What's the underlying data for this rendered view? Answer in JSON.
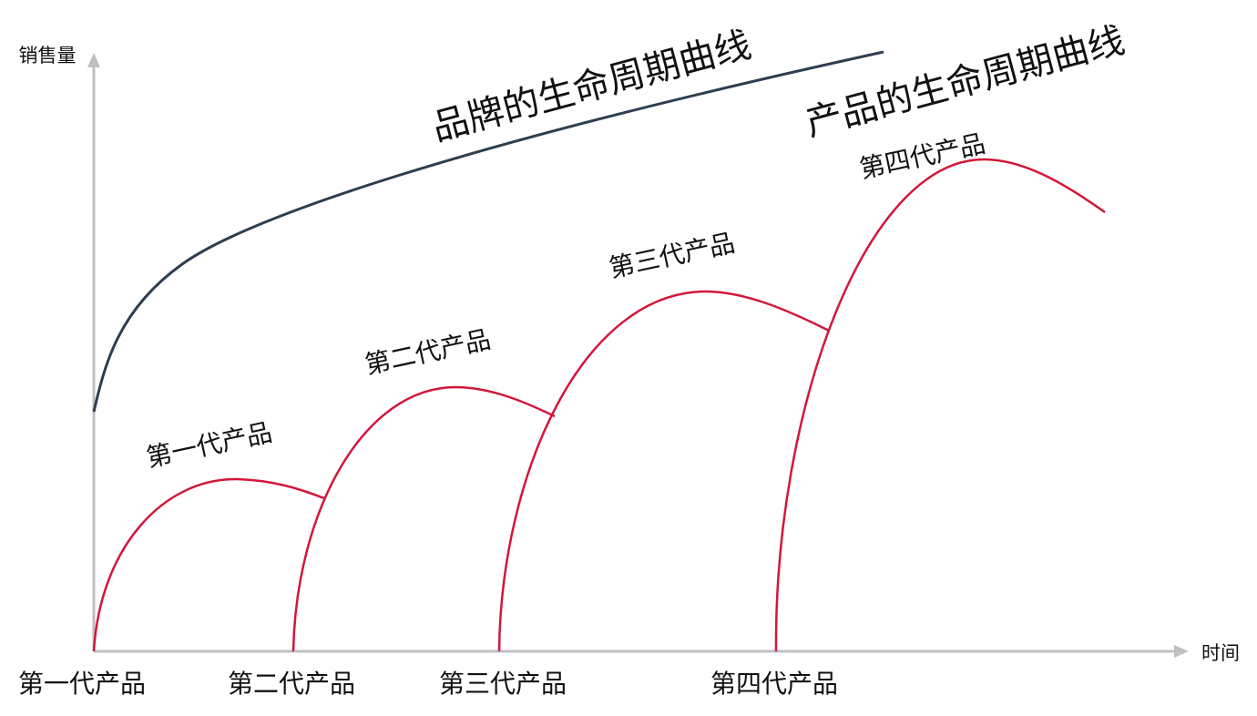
{
  "axes": {
    "y_label": "销售量",
    "x_label": "时间"
  },
  "curves": {
    "brand": "品牌的生命周期曲线",
    "product": "产品的生命周期曲线"
  },
  "generations": [
    {
      "curve_label": "第一代产品",
      "axis_label": "第一代产品"
    },
    {
      "curve_label": "第二代产品",
      "axis_label": "第二代产品"
    },
    {
      "curve_label": "第三代产品",
      "axis_label": "第三代产品"
    },
    {
      "curve_label": "第四代产品",
      "axis_label": "第四代产品"
    }
  ]
}
